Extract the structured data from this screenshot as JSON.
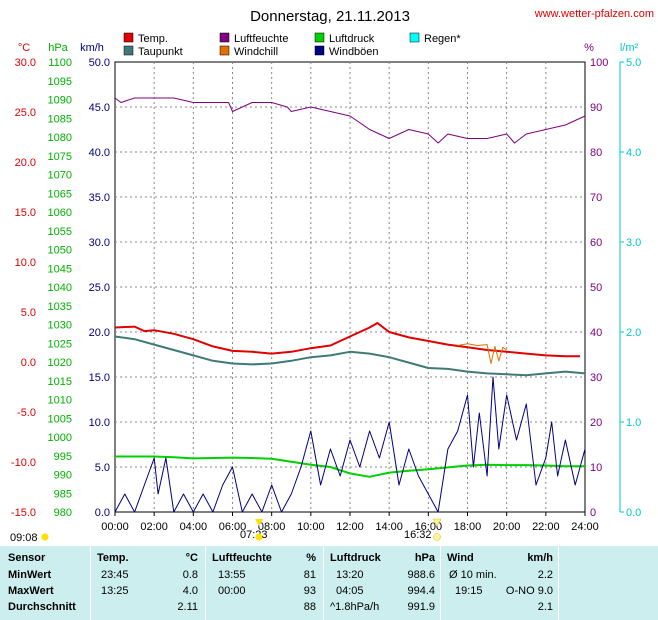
{
  "title": "Donnerstag, 21.11.2013",
  "site": "www.wetter-pfalzen.com",
  "units": {
    "temp": "°C",
    "press": "hPa",
    "wind": "km/h",
    "hum": "%",
    "rain": "l/m²"
  },
  "legend": [
    {
      "label": "Temp.",
      "color": "#e00000"
    },
    {
      "label": "Taupunkt",
      "color": "#3f7a78"
    },
    {
      "label": "Luftfeuchte",
      "color": "#800080"
    },
    {
      "label": "Windchill",
      "color": "#e07000"
    },
    {
      "label": "Luftdruck",
      "color": "#00d000"
    },
    {
      "label": "Windböen",
      "color": "#000080"
    },
    {
      "label": "Regen*",
      "color": "#00ffff"
    }
  ],
  "axes": {
    "temp_ticks": [
      "30.0",
      "25.0",
      "20.0",
      "15.0",
      "10.0",
      "5.0",
      "0.0",
      "-5.0",
      "-10.0",
      "-15.0"
    ],
    "press_ticks": [
      "1100",
      "1095",
      "1090",
      "1085",
      "1080",
      "1075",
      "1070",
      "1065",
      "1060",
      "1055",
      "1050",
      "1045",
      "1040",
      "1035",
      "1030",
      "1025",
      "1020",
      "1015",
      "1010",
      "1005",
      "1000",
      "995",
      "990",
      "985",
      "980"
    ],
    "wind_ticks": [
      "50.0",
      "45.0",
      "40.0",
      "35.0",
      "30.0",
      "25.0",
      "20.0",
      "15.0",
      "10.0",
      "5.0",
      "0.0"
    ],
    "hum_ticks": [
      "100",
      "90",
      "80",
      "70",
      "60",
      "50",
      "40",
      "30",
      "20",
      "10",
      "0"
    ],
    "rain_ticks": [
      "5.0",
      "4.0",
      "3.0",
      "2.0",
      "1.0",
      "0.0"
    ],
    "x_ticks": [
      "00:00",
      "02:00",
      "04:00",
      "06:00",
      "08:00",
      "10:00",
      "12:00",
      "14:00",
      "16:00",
      "18:00",
      "20:00",
      "22:00",
      "24:00"
    ]
  },
  "sun": {
    "moonset": "09:08",
    "sunrise": "07:23",
    "sunset": "16:32"
  },
  "chart_data": {
    "type": "line",
    "x_unit": "hours",
    "series": [
      {
        "name": "Temp.",
        "axis": "wind_0_50",
        "x": [
          0,
          1,
          1.5,
          2,
          3,
          4,
          5,
          6,
          7,
          8,
          9,
          10,
          11,
          12,
          13,
          13.4,
          14,
          15,
          16,
          17,
          18,
          19,
          20,
          21,
          22,
          23,
          23.75
        ],
        "values": [
          20.5,
          20.6,
          20.1,
          20.2,
          19.8,
          19.2,
          18.4,
          17.9,
          17.8,
          17.6,
          17.8,
          18.2,
          18.5,
          19.5,
          20.5,
          21.0,
          20.0,
          19.4,
          19.0,
          18.6,
          18.3,
          18.0,
          17.8,
          17.6,
          17.4,
          17.3,
          17.3
        ]
      },
      {
        "name": "Taupunkt",
        "axis": "wind_0_50",
        "x": [
          0,
          1,
          2,
          3,
          4,
          5,
          6,
          7,
          8,
          9,
          10,
          11,
          12,
          13,
          14,
          15,
          16,
          17,
          18,
          19,
          20,
          21,
          22,
          23,
          24
        ],
        "values": [
          19.5,
          19.2,
          18.6,
          18.0,
          17.4,
          16.8,
          16.5,
          16.4,
          16.5,
          16.8,
          17.2,
          17.4,
          17.8,
          17.6,
          17.2,
          16.6,
          16.0,
          15.9,
          15.6,
          15.4,
          15.3,
          15.2,
          15.4,
          15.6,
          15.4
        ]
      },
      {
        "name": "Luftfeuchte",
        "axis": "hum_0_100",
        "x": [
          0,
          0.3,
          1,
          2,
          3,
          4,
          5,
          5.8,
          6,
          7,
          8,
          8.8,
          9,
          10,
          11,
          12,
          13,
          13.5,
          14,
          15,
          16,
          16.5,
          17,
          18,
          19,
          20,
          20.4,
          21,
          22,
          23,
          24
        ],
        "values": [
          92,
          91,
          92,
          92,
          92,
          91,
          91,
          91,
          89,
          91,
          91,
          90,
          89,
          90,
          89,
          88,
          85,
          84,
          83,
          85,
          84,
          82,
          84,
          83,
          83,
          84,
          82,
          84,
          85,
          86,
          88
        ]
      },
      {
        "name": "Windchill",
        "axis": "wind_0_50",
        "x": [
          17.5,
          18,
          18.5,
          19,
          19.2,
          19.4,
          19.6,
          19.8,
          20
        ],
        "values": [
          18.5,
          18.7,
          18.5,
          18.6,
          16.5,
          18.4,
          16.8,
          18.3,
          18.0
        ]
      },
      {
        "name": "Luftdruck",
        "axis": "press_980_1100",
        "x": [
          0,
          2,
          3,
          4,
          5,
          6,
          7,
          8,
          9,
          10,
          11,
          12,
          13,
          14,
          15,
          16,
          17,
          18,
          19,
          20,
          21,
          22,
          23,
          24
        ],
        "values": [
          994.8,
          994.8,
          994.6,
          994.3,
          994.4,
          994.5,
          994.4,
          994.2,
          993.4,
          992.6,
          992.0,
          990.3,
          989.4,
          990.5,
          991.0,
          991.4,
          991.9,
          992.4,
          992.6,
          992.5,
          992.5,
          992.4,
          992.2,
          992.2
        ]
      },
      {
        "name": "Windböen",
        "axis": "wind_0_50",
        "x": [
          0,
          0.5,
          1,
          1.5,
          2,
          2.2,
          2.6,
          3,
          3.5,
          4,
          4.5,
          5,
          5.5,
          6,
          6.5,
          7,
          7.5,
          8,
          8.5,
          9,
          9.5,
          10,
          10.5,
          11,
          11.5,
          12,
          12.5,
          13,
          13.5,
          14,
          14.5,
          15,
          15.5,
          16,
          16.5,
          17,
          17.5,
          18,
          18.3,
          18.6,
          19,
          19.3,
          19.6,
          20,
          20.5,
          21,
          21.5,
          22,
          22.3,
          22.6,
          23,
          23.5,
          24
        ],
        "values": [
          0,
          2,
          0,
          3,
          6,
          2,
          6,
          0,
          2,
          0,
          2,
          0,
          3,
          5,
          0,
          2,
          0,
          3,
          0,
          2,
          5,
          9,
          3,
          7,
          4,
          8,
          5,
          9,
          6,
          10,
          3,
          7,
          4,
          2,
          0,
          7,
          9,
          13,
          5,
          11,
          4,
          15,
          7,
          13,
          8,
          12,
          3,
          6,
          10,
          4,
          8,
          3,
          7
        ]
      }
    ],
    "xlim": [
      0,
      24
    ]
  },
  "stats": {
    "headers": {
      "sensor": "Sensor",
      "temp": "Temp.",
      "temp_u": "°C",
      "hum": "Luftfeuchte",
      "hum_u": "%",
      "press": "Luftdruck",
      "press_u": "hPa",
      "wind": "Wind",
      "wind_u": "km/h"
    },
    "rows": [
      {
        "label": "MinWert",
        "t_time": "23:45",
        "t_val": "0.8",
        "h_time": "13:55",
        "h_val": "81",
        "p_time": "13:20",
        "p_val": "988.6",
        "w_time": "Ø 10 min.",
        "w_val": "2.2"
      },
      {
        "label": "MaxWert",
        "t_time": "13:25",
        "t_val": "4.0",
        "h_time": "00:00",
        "h_val": "93",
        "p_time": "04:05",
        "p_val": "994.4",
        "w_time": "19:15",
        "w_val": "O-NO 9.0"
      },
      {
        "label": "Durchschnitt",
        "t_time": "",
        "t_val": "2.11",
        "h_time": "",
        "h_val": "88",
        "p_time": "^1.8hPa/h",
        "p_val": "991.9",
        "w_time": "",
        "w_val": "2.1"
      }
    ]
  }
}
